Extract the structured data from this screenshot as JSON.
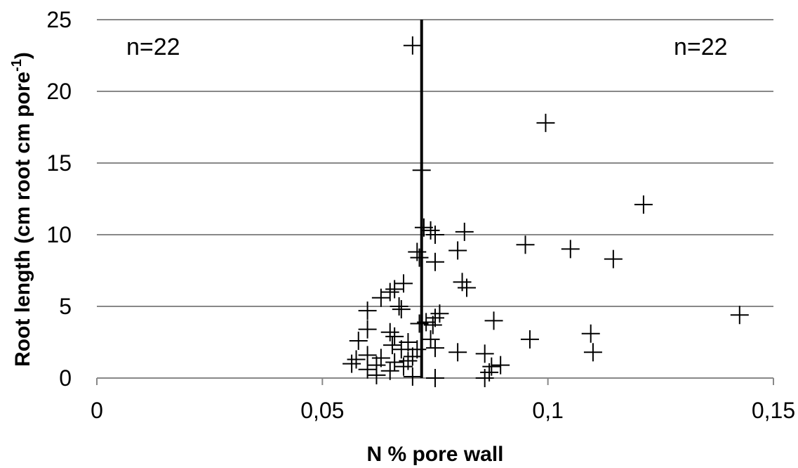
{
  "chart_data": {
    "type": "scatter",
    "xlabel": "N % pore wall",
    "ylabel": "Root length (cm root cm pore",
    "ylabel_sup": "-1",
    "ylabel_end": ")",
    "xlim": [
      0,
      0.15
    ],
    "ylim": [
      0,
      25
    ],
    "x_ticks": [
      0,
      0.05,
      0.1,
      0.15
    ],
    "x_tick_labels": [
      "0",
      "0,05",
      "0,1",
      "0,15"
    ],
    "y_ticks": [
      0,
      5,
      10,
      15,
      20,
      25
    ],
    "y_tick_labels": [
      "0",
      "5",
      "10",
      "15",
      "20",
      "25"
    ],
    "grid": "horizontal",
    "marker": "plus",
    "vertical_line_x": 0.072,
    "annotations": [
      {
        "text": "n=22",
        "position": "top-left"
      },
      {
        "text": "n=22",
        "position": "top-right"
      }
    ],
    "points": [
      {
        "x": 0.07,
        "y": 23.2
      },
      {
        "x": 0.0995,
        "y": 17.8
      },
      {
        "x": 0.072,
        "y": 14.5
      },
      {
        "x": 0.1212,
        "y": 12.1
      },
      {
        "x": 0.0725,
        "y": 10.5
      },
      {
        "x": 0.074,
        "y": 10.3
      },
      {
        "x": 0.0815,
        "y": 10.2
      },
      {
        "x": 0.075,
        "y": 10.0
      },
      {
        "x": 0.095,
        "y": 9.3
      },
      {
        "x": 0.105,
        "y": 9.0
      },
      {
        "x": 0.08,
        "y": 8.9
      },
      {
        "x": 0.071,
        "y": 8.8
      },
      {
        "x": 0.0715,
        "y": 8.4
      },
      {
        "x": 0.1145,
        "y": 8.3
      },
      {
        "x": 0.075,
        "y": 8.1
      },
      {
        "x": 0.081,
        "y": 6.7
      },
      {
        "x": 0.068,
        "y": 6.6
      },
      {
        "x": 0.082,
        "y": 6.3
      },
      {
        "x": 0.066,
        "y": 6.2
      },
      {
        "x": 0.065,
        "y": 6.0
      },
      {
        "x": 0.063,
        "y": 5.6
      },
      {
        "x": 0.067,
        "y": 5.0
      },
      {
        "x": 0.06,
        "y": 4.7
      },
      {
        "x": 0.0675,
        "y": 4.8
      },
      {
        "x": 0.1425,
        "y": 4.4
      },
      {
        "x": 0.076,
        "y": 4.5
      },
      {
        "x": 0.075,
        "y": 4.2
      },
      {
        "x": 0.088,
        "y": 4.0
      },
      {
        "x": 0.073,
        "y": 3.9
      },
      {
        "x": 0.0715,
        "y": 3.8
      },
      {
        "x": 0.0745,
        "y": 3.7
      },
      {
        "x": 0.06,
        "y": 3.4
      },
      {
        "x": 0.065,
        "y": 3.2
      },
      {
        "x": 0.1095,
        "y": 3.1
      },
      {
        "x": 0.066,
        "y": 2.9
      },
      {
        "x": 0.096,
        "y": 2.7
      },
      {
        "x": 0.058,
        "y": 2.6
      },
      {
        "x": 0.074,
        "y": 2.7
      },
      {
        "x": 0.069,
        "y": 2.5
      },
      {
        "x": 0.0655,
        "y": 2.3
      },
      {
        "x": 0.075,
        "y": 2.1
      },
      {
        "x": 0.071,
        "y": 2.0
      },
      {
        "x": 0.0675,
        "y": 2.0
      },
      {
        "x": 0.11,
        "y": 1.8
      },
      {
        "x": 0.08,
        "y": 1.8
      },
      {
        "x": 0.086,
        "y": 1.7
      },
      {
        "x": 0.06,
        "y": 1.6
      },
      {
        "x": 0.063,
        "y": 1.4
      },
      {
        "x": 0.07,
        "y": 1.5
      },
      {
        "x": 0.0575,
        "y": 1.3
      },
      {
        "x": 0.069,
        "y": 1.2
      },
      {
        "x": 0.066,
        "y": 1.1
      },
      {
        "x": 0.0565,
        "y": 1.0
      },
      {
        "x": 0.0895,
        "y": 0.9
      },
      {
        "x": 0.062,
        "y": 0.9
      },
      {
        "x": 0.068,
        "y": 0.8
      },
      {
        "x": 0.0875,
        "y": 0.8
      },
      {
        "x": 0.06,
        "y": 0.6
      },
      {
        "x": 0.065,
        "y": 0.5
      },
      {
        "x": 0.087,
        "y": 0.4
      },
      {
        "x": 0.062,
        "y": 0.2
      },
      {
        "x": 0.07,
        "y": 0.1
      },
      {
        "x": 0.075,
        "y": 0.0
      },
      {
        "x": 0.086,
        "y": 0.0
      }
    ]
  }
}
